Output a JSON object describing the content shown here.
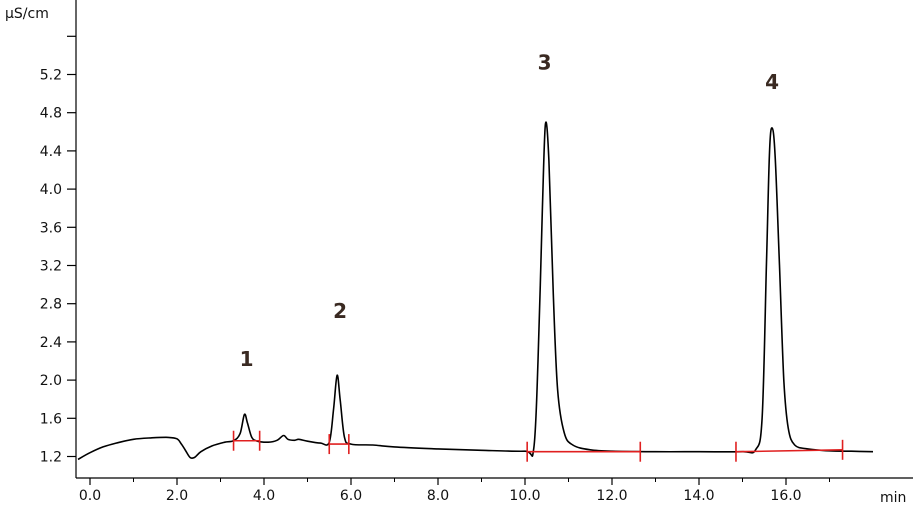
{
  "chart_data": {
    "type": "line",
    "title": "",
    "xlabel": "min",
    "ylabel": "µS/cm",
    "xlim": [
      -0.3,
      18.0
    ],
    "ylim": [
      1.14,
      5.9
    ],
    "x_ticks": [
      0,
      2,
      4,
      6,
      8,
      10,
      12,
      14,
      16
    ],
    "x_tick_labels": [
      "0.0",
      "2.0",
      "4.0",
      "6.0",
      "8.0",
      "10.0",
      "12.0",
      "14.0",
      "16.0"
    ],
    "y_ticks": [
      1.2,
      1.6,
      2.0,
      2.4,
      2.8,
      3.2,
      3.6,
      4.0,
      4.4,
      4.8,
      5.2
    ],
    "y_tick_labels": [
      "1.2",
      "1.6",
      "2.0",
      "2.4",
      "2.8",
      "3.2",
      "3.6",
      "4.0",
      "4.4",
      "4.8",
      "5.2"
    ],
    "y_minor_ticks": [
      5.6
    ],
    "grid": false,
    "legend": "none",
    "line_color": "#000000",
    "baseline_color": "#e02020",
    "series": [
      {
        "points": [
          [
            -0.3,
            1.17
          ],
          [
            0.0,
            1.24
          ],
          [
            0.3,
            1.3
          ],
          [
            0.6,
            1.34
          ],
          [
            1.0,
            1.38
          ],
          [
            1.4,
            1.395
          ],
          [
            1.8,
            1.4
          ],
          [
            2.0,
            1.385
          ],
          [
            2.1,
            1.33
          ],
          [
            2.2,
            1.26
          ],
          [
            2.3,
            1.19
          ],
          [
            2.4,
            1.19
          ],
          [
            2.55,
            1.25
          ],
          [
            2.8,
            1.31
          ],
          [
            3.1,
            1.35
          ],
          [
            3.3,
            1.365
          ],
          [
            3.45,
            1.44
          ],
          [
            3.55,
            1.64
          ],
          [
            3.62,
            1.55
          ],
          [
            3.72,
            1.4
          ],
          [
            3.85,
            1.36
          ],
          [
            4.1,
            1.35
          ],
          [
            4.3,
            1.37
          ],
          [
            4.45,
            1.42
          ],
          [
            4.55,
            1.38
          ],
          [
            4.7,
            1.37
          ],
          [
            4.8,
            1.38
          ],
          [
            5.0,
            1.36
          ],
          [
            5.3,
            1.34
          ],
          [
            5.5,
            1.35
          ],
          [
            5.6,
            1.7
          ],
          [
            5.68,
            2.05
          ],
          [
            5.75,
            1.8
          ],
          [
            5.85,
            1.4
          ],
          [
            6.0,
            1.33
          ],
          [
            6.5,
            1.32
          ],
          [
            7.0,
            1.3
          ],
          [
            8.0,
            1.28
          ],
          [
            9.0,
            1.265
          ],
          [
            10.0,
            1.255
          ],
          [
            10.2,
            1.28
          ],
          [
            10.3,
            2.2
          ],
          [
            10.4,
            3.8
          ],
          [
            10.47,
            4.68
          ],
          [
            10.55,
            4.3
          ],
          [
            10.65,
            2.9
          ],
          [
            10.75,
            1.9
          ],
          [
            10.9,
            1.45
          ],
          [
            11.1,
            1.32
          ],
          [
            11.5,
            1.27
          ],
          [
            12.0,
            1.255
          ],
          [
            13.0,
            1.25
          ],
          [
            14.0,
            1.25
          ],
          [
            15.0,
            1.25
          ],
          [
            15.3,
            1.27
          ],
          [
            15.45,
            1.6
          ],
          [
            15.55,
            3.2
          ],
          [
            15.62,
            4.38
          ],
          [
            15.68,
            4.64
          ],
          [
            15.75,
            4.35
          ],
          [
            15.85,
            3.2
          ],
          [
            15.95,
            2.0
          ],
          [
            16.05,
            1.5
          ],
          [
            16.2,
            1.32
          ],
          [
            16.5,
            1.28
          ],
          [
            17.0,
            1.26
          ],
          [
            17.5,
            1.255
          ],
          [
            18.0,
            1.25
          ]
        ]
      }
    ],
    "baselines": [
      {
        "x1": 3.3,
        "y1": 1.365,
        "x2": 3.9,
        "y2": 1.365
      },
      {
        "x1": 5.5,
        "y1": 1.33,
        "x2": 5.95,
        "y2": 1.33
      },
      {
        "x1": 10.05,
        "y1": 1.25,
        "x2": 12.65,
        "y2": 1.25
      },
      {
        "x1": 14.85,
        "y1": 1.25,
        "x2": 17.3,
        "y2": 1.27
      }
    ],
    "annotations": [
      {
        "text": "1",
        "x": 3.6,
        "y": 2.15
      },
      {
        "text": "2",
        "x": 5.75,
        "y": 2.65
      },
      {
        "text": "3",
        "x": 10.45,
        "y": 5.25
      },
      {
        "text": "4",
        "x": 15.68,
        "y": 5.05
      }
    ]
  }
}
